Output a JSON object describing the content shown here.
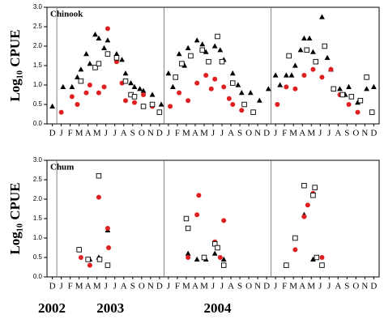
{
  "chart_data": [
    {
      "type": "scatter",
      "title": "Chinook",
      "y_label": "Log₁₀ CPUE",
      "categories": [
        "D",
        "J",
        "F",
        "M",
        "A",
        "M",
        "J",
        "J",
        "A",
        "S",
        "O",
        "N",
        "D",
        "J",
        "F",
        "M",
        "A",
        "M",
        "J",
        "J",
        "A",
        "S",
        "O",
        "N",
        "D",
        "J",
        "F",
        "M",
        "A",
        "M",
        "J",
        "J",
        "A",
        "S",
        "O",
        "N",
        "D"
      ],
      "xlim": [
        -0.6,
        36.6
      ],
      "ylim": [
        0,
        3
      ],
      "yticks": [
        {
          "value": 0,
          "label": "0.0"
        },
        0.5,
        {
          "value": 1,
          "label": "1.0"
        },
        1.5,
        {
          "value": 2,
          "label": "2.0"
        },
        2.5,
        {
          "value": 3,
          "label": "3.0"
        }
      ],
      "series": [
        {
          "marker": "triangle",
          "color": "#000000",
          "x": [
            0,
            1.2,
            2.2,
            2.8,
            3.2,
            3.8,
            4.2,
            4.8,
            5.2,
            5.8,
            6.2,
            7.2,
            7.8,
            8.2,
            8.8,
            9.2,
            9.8,
            10.2,
            11.2,
            12.2,
            13,
            13.5,
            14.2,
            14.8,
            15.2,
            16.2,
            16.8,
            17.2,
            18.2,
            18.8,
            19.2,
            20.2,
            20.8,
            21.2,
            22.2,
            23.2,
            24.2,
            25,
            25.5,
            26.2,
            26.8,
            27.2,
            27.8,
            28.2,
            28.8,
            29.2,
            30.2,
            30.8,
            31.2,
            32.2,
            32.8,
            33.2,
            34.2,
            35.2,
            36
          ],
          "values": [
            0.45,
            0.95,
            0.95,
            1.2,
            1.4,
            1.8,
            1.55,
            2.3,
            2.2,
            1.95,
            2.15,
            1.8,
            1.65,
            1.3,
            1.05,
            0.95,
            0.9,
            0.85,
            0.75,
            0.5,
            1.3,
            0.95,
            1.8,
            1.5,
            1.95,
            2.15,
            2.05,
            1.85,
            2.0,
            1.9,
            1.65,
            1.3,
            1.0,
            0.8,
            0.8,
            0.6,
            0.9,
            1.25,
            1.0,
            1.25,
            1.25,
            1.5,
            1.9,
            2.2,
            2.2,
            1.85,
            2.75,
            1.7,
            1.4,
            0.9,
            0.75,
            0.95,
            0.55,
            0.9,
            0.95
          ]
        },
        {
          "marker": "circle",
          "color": "#e02020",
          "x": [
            1,
            2.2,
            2.8,
            3.8,
            4.2,
            5.2,
            5.8,
            6.2,
            7.2,
            7.8,
            8.2,
            9.2,
            10.2,
            11.2,
            13.2,
            14.2,
            15.2,
            16.2,
            17.2,
            17.8,
            18.2,
            19.2,
            19.8,
            20.2,
            21.2,
            25.2,
            26.2,
            27.2,
            28.2,
            29.2,
            30.2,
            31.2,
            32.2,
            33.2,
            34.2
          ],
          "values": [
            0.3,
            0.7,
            0.5,
            0.8,
            1.0,
            0.8,
            0.95,
            2.45,
            1.6,
            1.05,
            0.6,
            0.55,
            0.75,
            0.45,
            0.45,
            0.8,
            0.6,
            1.05,
            1.25,
            0.9,
            1.15,
            0.95,
            0.65,
            0.5,
            0.35,
            0.5,
            0.95,
            0.9,
            1.25,
            1.4,
            1.2,
            1.4,
            0.75,
            0.5,
            0.3
          ]
        },
        {
          "marker": "square",
          "color": "#000000",
          "x": [
            3.2,
            4.8,
            5.2,
            6.2,
            7.2,
            8.2,
            8.8,
            9.2,
            10.2,
            11.2,
            12,
            13.8,
            14.5,
            15.5,
            16.8,
            17.5,
            18.5,
            19,
            20.2,
            21.5,
            22.5,
            26.5,
            28.5,
            29.5,
            30.5,
            31.5,
            32.5,
            33.5,
            34.5,
            35.2,
            35.8
          ],
          "values": [
            1.1,
            1.45,
            1.55,
            1.8,
            1.7,
            1.1,
            0.75,
            0.7,
            0.45,
            0.5,
            0.3,
            1.2,
            1.55,
            1.75,
            1.9,
            1.6,
            2.25,
            1.6,
            1.05,
            0.5,
            0.3,
            1.75,
            1.9,
            1.6,
            2.0,
            0.9,
            0.75,
            0.7,
            0.6,
            1.2,
            0.3
          ]
        }
      ]
    },
    {
      "type": "scatter",
      "title": "Chum",
      "y_label": "Log₁₀ CPUE",
      "categories": [
        "D",
        "J",
        "F",
        "M",
        "A",
        "M",
        "J",
        "J",
        "A",
        "S",
        "O",
        "N",
        "D",
        "J",
        "F",
        "M",
        "A",
        "M",
        "J",
        "J",
        "A",
        "S",
        "O",
        "N",
        "D",
        "J",
        "F",
        "M",
        "A",
        "M",
        "J",
        "J",
        "A",
        "S",
        "O",
        "N",
        "D"
      ],
      "year_labels": [
        "2002",
        "2003",
        "2004"
      ],
      "xlim": [
        -0.6,
        36.6
      ],
      "ylim": [
        0,
        3
      ],
      "yticks": [
        {
          "value": 0,
          "label": "0.0"
        },
        0.5,
        {
          "value": 1,
          "label": "1.0"
        },
        1.5,
        {
          "value": 2,
          "label": "2.0"
        },
        2.5,
        {
          "value": 3,
          "label": "3.0"
        }
      ],
      "series": [
        {
          "marker": "triangle",
          "color": "#000000",
          "x": [
            4.2,
            5.2,
            6.2,
            15.2,
            16.2,
            17.2,
            18.2,
            19.2,
            28.2,
            29.2
          ],
          "values": [
            0.45,
            0.5,
            1.2,
            0.6,
            0.45,
            0.45,
            0.6,
            0.45,
            1.6,
            0.45
          ]
        },
        {
          "marker": "circle",
          "color": "#e02020",
          "x": [
            3.2,
            4.2,
            5.2,
            6.2,
            6.3,
            15.2,
            16.2,
            16.4,
            18.2,
            18.8,
            19.2,
            27.2,
            28.2,
            28.6,
            29.2,
            30.2
          ],
          "values": [
            0.5,
            0.3,
            2.05,
            1.25,
            0.75,
            0.5,
            1.6,
            2.1,
            0.9,
            0.5,
            1.45,
            0.7,
            1.55,
            1.85,
            2.15,
            0.5
          ]
        },
        {
          "marker": "square",
          "color": "#000000",
          "x": [
            3,
            4,
            5.2,
            5.3,
            6.2,
            15,
            15.2,
            17,
            18.2,
            18.5,
            19.2,
            26.2,
            27.2,
            28.2,
            29.2,
            29.4,
            29.6,
            30.2
          ],
          "values": [
            0.7,
            0.45,
            2.6,
            0.45,
            0.3,
            1.5,
            1.25,
            0.5,
            0.85,
            0.75,
            0.3,
            0.3,
            1.0,
            2.35,
            2.1,
            2.3,
            0.5,
            0.3
          ]
        }
      ]
    }
  ]
}
